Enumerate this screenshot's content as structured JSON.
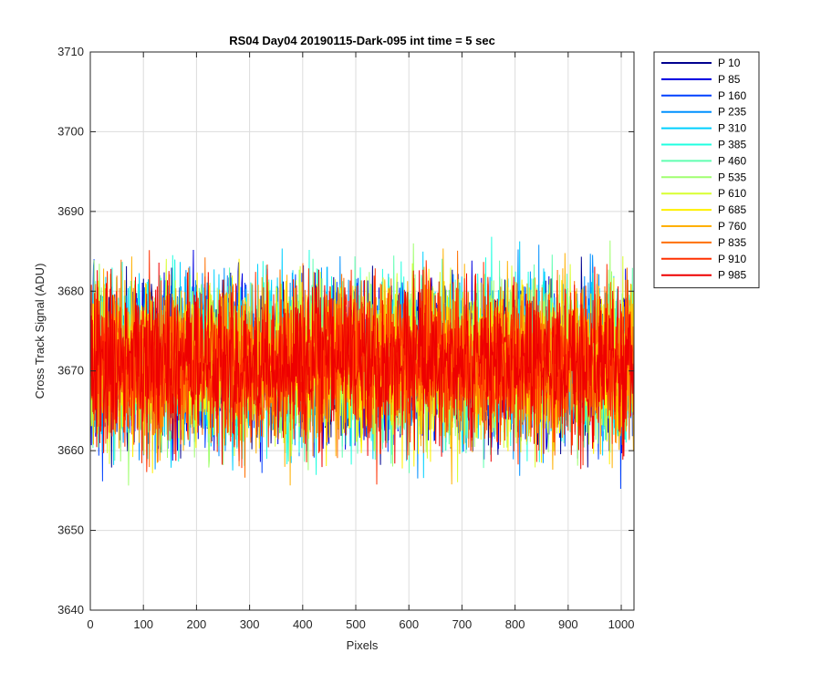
{
  "chart_data": {
    "type": "line",
    "title": "RS04 Day04 20190115-Dark-095 int time = 5 sec",
    "xlabel": "Pixels",
    "ylabel": "Cross Track Signal (ADU)",
    "xlim": [
      0,
      1024
    ],
    "ylim": [
      3640,
      3710
    ],
    "xticks": [
      0,
      100,
      200,
      300,
      400,
      500,
      600,
      700,
      800,
      900,
      1000
    ],
    "yticks": [
      3640,
      3650,
      3660,
      3670,
      3680,
      3690,
      3700,
      3710
    ],
    "grid": true,
    "legend_position": "outside-top-right",
    "n_points": 1024,
    "series": [
      {
        "name": "P 10",
        "color": "#00008F",
        "mean": 3671,
        "spread": 10,
        "seed": 11
      },
      {
        "name": "P 85",
        "color": "#0000E0",
        "mean": 3671,
        "spread": 10,
        "seed": 23
      },
      {
        "name": "P 160",
        "color": "#0040FF",
        "mean": 3671,
        "spread": 10,
        "seed": 37
      },
      {
        "name": "P 235",
        "color": "#0090FF",
        "mean": 3671,
        "spread": 10,
        "seed": 41
      },
      {
        "name": "P 310",
        "color": "#00D0FF",
        "mean": 3671,
        "spread": 10,
        "seed": 53
      },
      {
        "name": "P 385",
        "color": "#20FFE0",
        "mean": 3671,
        "spread": 10,
        "seed": 67
      },
      {
        "name": "P 460",
        "color": "#60FFB0",
        "mean": 3671,
        "spread": 10,
        "seed": 71
      },
      {
        "name": "P 535",
        "color": "#A0FF70",
        "mean": 3671,
        "spread": 10,
        "seed": 83
      },
      {
        "name": "P 610",
        "color": "#D8FF30",
        "mean": 3671,
        "spread": 10,
        "seed": 97
      },
      {
        "name": "P 685",
        "color": "#FFF000",
        "mean": 3671,
        "spread": 10,
        "seed": 101
      },
      {
        "name": "P 760",
        "color": "#FFB000",
        "mean": 3671,
        "spread": 10,
        "seed": 113
      },
      {
        "name": "P 835",
        "color": "#FF7000",
        "mean": 3671,
        "spread": 10,
        "seed": 127
      },
      {
        "name": "P 910",
        "color": "#FF3000",
        "mean": 3671,
        "spread": 10,
        "seed": 131
      },
      {
        "name": "P 985",
        "color": "#EE0000",
        "mean": 3671,
        "spread": 10,
        "seed": 149
      }
    ]
  }
}
